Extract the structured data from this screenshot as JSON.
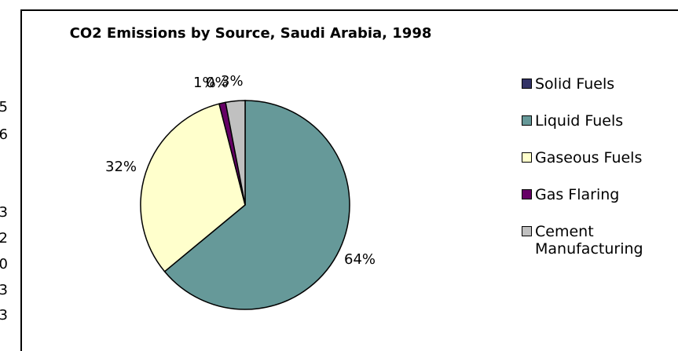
{
  "edge_fragments": [
    "5",
    "6",
    "3",
    "2",
    "0",
    "3",
    "3"
  ],
  "chart_data": {
    "type": "pie",
    "title": "CO2 Emissions by Source, Saudi Arabia, 1998",
    "categories": [
      "Solid Fuels",
      "Liquid Fuels",
      "Gaseous Fuels",
      "Gas Flaring",
      "Cement Manufacturing"
    ],
    "values": [
      0,
      64,
      32,
      1,
      3
    ],
    "data_labels": [
      "0%",
      "64%",
      "32%",
      "1%",
      "3%"
    ],
    "colors": [
      "#333366",
      "#669999",
      "#ffffcc",
      "#660066",
      "#c0c0c0"
    ],
    "legend_position": "right"
  }
}
